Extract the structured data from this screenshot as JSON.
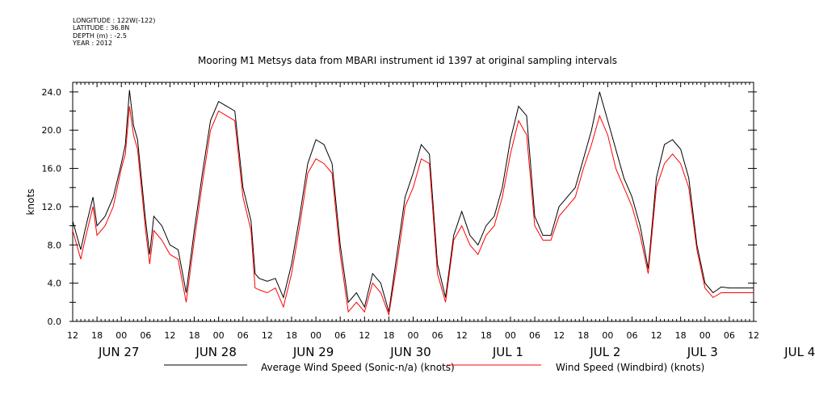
{
  "header": {
    "longitude": "LONGITUDE : 122W(-122)",
    "latitude": "LATITUDE : 36.8N",
    "depth": "DEPTH (m) : -2.5",
    "year": "YEAR : 2012"
  },
  "chart_data": {
    "type": "line",
    "title": "Mooring M1 Metsys data from MBARI instrument id 1397 at original sampling intervals",
    "ylabel": "knots",
    "xlabel": "",
    "ylim": [
      0,
      25
    ],
    "xlim_hours": [
      0,
      168
    ],
    "y_ticks": [
      "0.0",
      "4.0",
      "8.0",
      "12.0",
      "16.0",
      "20.0",
      "24.0"
    ],
    "x_hour_ticks": [
      "12",
      "18",
      "00",
      "06",
      "12",
      "18",
      "00",
      "06",
      "12",
      "18",
      "00",
      "06",
      "12",
      "18",
      "00",
      "06",
      "12",
      "18",
      "00",
      "06",
      "12",
      "18",
      "00",
      "06",
      "12",
      "18",
      "00",
      "06",
      "12"
    ],
    "x_date_labels": [
      "JUN 27",
      "JUN 28",
      "JUN 29",
      "JUN 30",
      "JUL  1",
      "JUL  2",
      "JUL  3",
      "JUL  4"
    ],
    "series": [
      {
        "name": "Average Wind Speed (Sonic-n/a) (knots)",
        "color": "#000000",
        "x": [
          0,
          2,
          3,
          5,
          6,
          8,
          10,
          12,
          13,
          14,
          15,
          16,
          18,
          19,
          20,
          22,
          24,
          26,
          28,
          30,
          32,
          34,
          36,
          38,
          40,
          42,
          44,
          45,
          46,
          48,
          50,
          52,
          54,
          56,
          58,
          60,
          62,
          64,
          66,
          68,
          70,
          72,
          74,
          76,
          78,
          80,
          82,
          84,
          86,
          88,
          90,
          92,
          94,
          96,
          98,
          100,
          102,
          104,
          106,
          108,
          110,
          112,
          114,
          116,
          118,
          120,
          122,
          124,
          126,
          128,
          130,
          132,
          134,
          136,
          138,
          140,
          142,
          144,
          146,
          148,
          150,
          152,
          154,
          156,
          158,
          160,
          162,
          164,
          166,
          168
        ],
        "y": [
          10.5,
          7.5,
          9.5,
          13,
          10,
          11,
          13,
          16.5,
          18.5,
          24.2,
          20.5,
          19,
          10.5,
          7,
          11,
          10,
          8,
          7.5,
          3,
          9.5,
          15.5,
          21,
          23,
          22.5,
          22,
          14,
          10.5,
          5,
          4.5,
          4.2,
          4.5,
          2.5,
          6,
          11,
          16.5,
          19,
          18.5,
          16.5,
          8,
          2,
          3,
          1.5,
          5,
          4,
          1,
          7,
          13,
          15.5,
          18.5,
          17.5,
          6,
          2.5,
          9,
          11.5,
          9,
          8,
          10,
          11,
          14,
          19,
          22.5,
          21.5,
          11,
          9,
          9,
          12,
          13,
          14,
          17,
          20,
          24,
          21,
          18,
          15,
          13,
          10,
          5.5,
          15,
          18.5,
          19,
          18,
          15,
          8,
          4,
          3,
          3.6,
          3.5,
          3.5,
          3.5,
          3.5
        ]
      },
      {
        "name": "Wind Speed (Windbird) (knots)",
        "color": "#ff0000",
        "x": [
          0,
          2,
          3,
          5,
          6,
          8,
          10,
          12,
          13,
          14,
          15,
          16,
          18,
          19,
          20,
          22,
          24,
          26,
          28,
          30,
          32,
          34,
          36,
          38,
          40,
          42,
          44,
          45,
          46,
          48,
          50,
          52,
          54,
          56,
          58,
          60,
          62,
          64,
          66,
          68,
          70,
          72,
          74,
          76,
          78,
          80,
          82,
          84,
          86,
          88,
          90,
          92,
          94,
          96,
          98,
          100,
          102,
          104,
          106,
          108,
          110,
          112,
          114,
          116,
          118,
          120,
          122,
          124,
          126,
          128,
          130,
          132,
          134,
          136,
          138,
          140,
          142,
          144,
          146,
          148,
          150,
          152,
          154,
          156,
          158,
          160,
          162,
          164,
          166,
          168
        ],
        "y": [
          9.5,
          6.5,
          8.5,
          12,
          9,
          10,
          12,
          16,
          17.5,
          22.5,
          19.5,
          18,
          9.5,
          6,
          9.5,
          8.5,
          7,
          6.5,
          2,
          8.5,
          14.5,
          20,
          22,
          21.5,
          21,
          13,
          9.5,
          3.5,
          3.3,
          3,
          3.5,
          1.5,
          5,
          10,
          15.5,
          17,
          16.5,
          15.5,
          7,
          1,
          2,
          1,
          4,
          3,
          0.7,
          6,
          12,
          14,
          17,
          16.5,
          5,
          2,
          8.5,
          10,
          8,
          7,
          9,
          10,
          13,
          17.5,
          21,
          19.5,
          10,
          8.5,
          8.5,
          11,
          12,
          13,
          16,
          18.5,
          21.5,
          19.5,
          16,
          14,
          12,
          9,
          5,
          14,
          16.5,
          17.5,
          16.5,
          14,
          7.5,
          3.5,
          2.5,
          3,
          3,
          3,
          3,
          3
        ]
      }
    ],
    "legend_position": "bottom"
  }
}
